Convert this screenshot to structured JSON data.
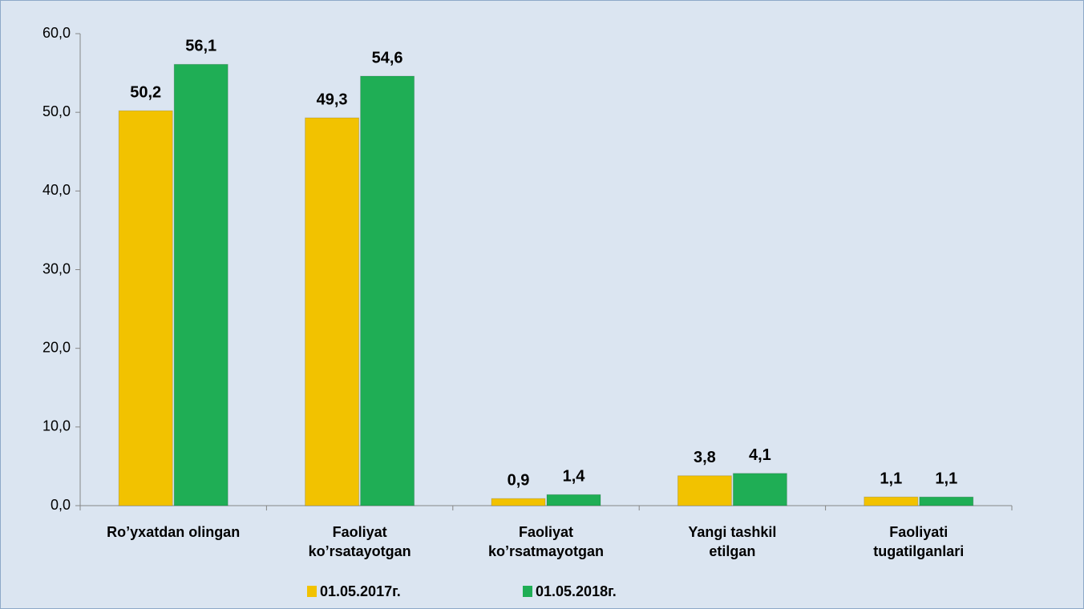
{
  "chart_data": {
    "type": "bar",
    "categories": [
      [
        "Ro’yxatdan olingan"
      ],
      [
        "Faoliyat",
        "ko’rsatayotgan"
      ],
      [
        "Faoliyat",
        "ko’rsatmayotgan"
      ],
      [
        "Yangi tashkil",
        "etilgan"
      ],
      [
        "Faoliyati",
        "tugatilganlari"
      ]
    ],
    "series": [
      {
        "name": "01.05.2017г.",
        "color": "#f2c200",
        "values": [
          50.2,
          49.3,
          0.9,
          3.8,
          1.1
        ],
        "value_labels": [
          "50,2",
          "49,3",
          "0,9",
          "3,8",
          "1,1"
        ]
      },
      {
        "name": "01.05.2018г.",
        "color": "#1fae55",
        "values": [
          56.1,
          54.6,
          1.4,
          4.1,
          1.1
        ],
        "value_labels": [
          "56,1",
          "54,6",
          "1,4",
          "4,1",
          "1,1"
        ]
      }
    ],
    "ylim": [
      0,
      60
    ],
    "yticks": [
      {
        "value": 0,
        "label": "0,0"
      },
      {
        "value": 10,
        "label": "10,0"
      },
      {
        "value": 20,
        "label": "20,0"
      },
      {
        "value": 30,
        "label": "30,0"
      },
      {
        "value": 40,
        "label": "40,0"
      },
      {
        "value": 50,
        "label": "50,0"
      },
      {
        "value": 60,
        "label": "60,0"
      }
    ],
    "legend": "bottom"
  }
}
